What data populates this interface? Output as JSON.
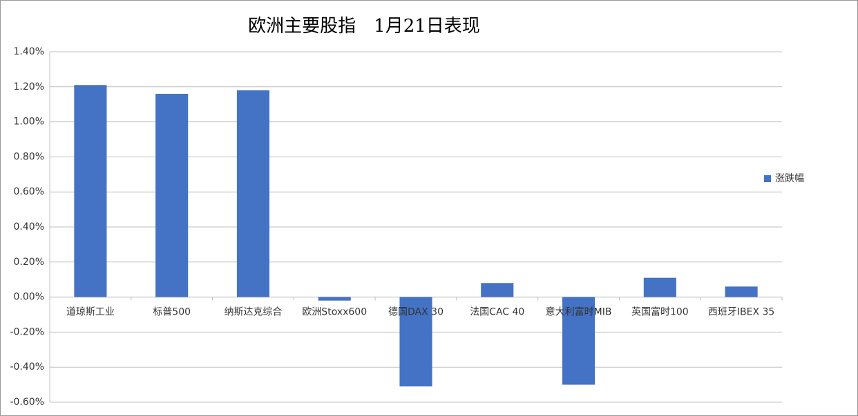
{
  "chart_data": {
    "type": "bar",
    "title": "欧洲主要股指　1月21日表现",
    "categories": [
      "道琼斯工业",
      "标普500",
      "纳斯达克综合",
      "欧洲Stoxx600",
      "德国DAX 30",
      "法国CAC 40",
      "意大利富时MIB",
      "英国富时100",
      "西班牙IBEX 35"
    ],
    "series": [
      {
        "name": "涨跌幅",
        "color": "#4472c4",
        "values": [
          1.21,
          1.16,
          1.18,
          -0.02,
          -0.51,
          0.08,
          -0.5,
          0.11,
          0.06
        ]
      }
    ],
    "ylim": [
      -0.6,
      1.4
    ],
    "yticks": [
      {
        "value": -0.6,
        "label": "-0.60%"
      },
      {
        "value": -0.4,
        "label": "-0.40%"
      },
      {
        "value": -0.2,
        "label": "-0.20%"
      },
      {
        "value": 0,
        "label": "0.00%"
      },
      {
        "value": 0.2,
        "label": "0.20%"
      },
      {
        "value": 0.4,
        "label": "0.40%"
      },
      {
        "value": 0.6,
        "label": "0.60%"
      },
      {
        "value": 0.8,
        "label": "0.80%"
      },
      {
        "value": 1.0,
        "label": "1.00%"
      },
      {
        "value": 1.2,
        "label": "1.20%"
      },
      {
        "value": 1.4,
        "label": "1.40%"
      }
    ],
    "grid": true,
    "legend": "right"
  }
}
